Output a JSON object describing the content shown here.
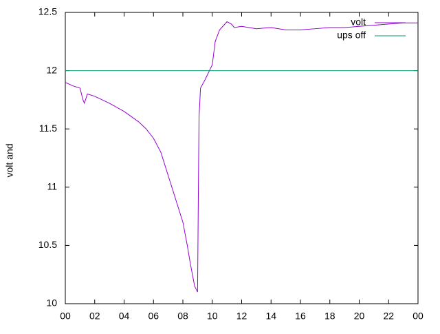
{
  "chart_data": {
    "type": "line",
    "ylabel": "volt and",
    "xlim": [
      0,
      24
    ],
    "xticks": [
      {
        "value": 0,
        "label": "00"
      },
      {
        "value": 2,
        "label": "02"
      },
      {
        "value": 4,
        "label": "04"
      },
      {
        "value": 6,
        "label": "06"
      },
      {
        "value": 8,
        "label": "08"
      },
      10,
      12,
      14,
      16,
      18,
      20,
      22,
      {
        "value": 24,
        "label": "00"
      }
    ],
    "ylim": [
      10,
      12.5
    ],
    "yticks": [
      10,
      10.5,
      11,
      11.5,
      12,
      12.5
    ],
    "legend": "top right",
    "series": [
      {
        "name": "volt",
        "color": "#9400d3",
        "x": [
          0,
          0.5,
          1,
          1.2,
          1.3,
          1.5,
          2,
          3,
          4,
          5,
          5.5,
          6,
          6.5,
          7,
          7.5,
          8,
          8.3,
          8.5,
          8.8,
          9,
          9.05,
          9.1,
          9.2,
          9.5,
          10,
          10.2,
          10.5,
          11,
          11.3,
          11.5,
          12,
          13,
          14,
          15,
          16,
          17,
          18,
          19,
          20,
          21,
          22,
          23,
          24
        ],
        "values": [
          11.9,
          11.87,
          11.85,
          11.75,
          11.72,
          11.8,
          11.78,
          11.72,
          11.65,
          11.56,
          11.5,
          11.42,
          11.3,
          11.1,
          10.9,
          10.7,
          10.5,
          10.35,
          10.15,
          10.1,
          10.9,
          11.6,
          11.85,
          11.92,
          12.05,
          12.25,
          12.35,
          12.42,
          12.4,
          12.37,
          12.38,
          12.36,
          12.37,
          12.35,
          12.35,
          12.36,
          12.37,
          12.37,
          12.38,
          12.39,
          12.4,
          12.41,
          12.41
        ]
      },
      {
        "name": "ups off",
        "color": "#009e73",
        "x": [
          0,
          24
        ],
        "values": [
          12,
          12
        ]
      }
    ]
  }
}
